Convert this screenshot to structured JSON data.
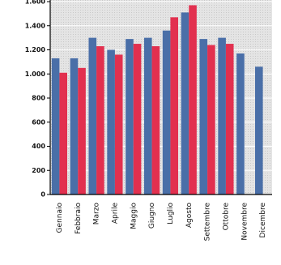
{
  "chart_data": {
    "type": "bar",
    "categories": [
      "Gennaio",
      "Febbraio",
      "Marzo",
      "Aprile",
      "Maggio",
      "Giugno",
      "Luglio",
      "Agosto",
      "Settembre",
      "Ottobre",
      "Novembre",
      "Dicembre"
    ],
    "series": [
      {
        "color": "#4a6fa8",
        "values": [
          1130,
          1130,
          1300,
          1200,
          1290,
          1300,
          1360,
          1510,
          1290,
          1300,
          1170,
          1060
        ]
      },
      {
        "color": "#e2304f",
        "values": [
          1010,
          1050,
          1230,
          1160,
          1250,
          1230,
          1470,
          1570,
          1240,
          1250,
          null,
          null
        ]
      }
    ],
    "ylim": [
      0,
      1600
    ],
    "yticks": [
      0,
      200,
      400,
      600,
      800,
      {
        "value": 1000,
        "label": "1.000"
      },
      {
        "value": 1200,
        "label": "1.200"
      },
      {
        "value": 1400,
        "label": "1.400"
      },
      {
        "value": 1600,
        "label": "1.600"
      }
    ],
    "grid": true
  }
}
